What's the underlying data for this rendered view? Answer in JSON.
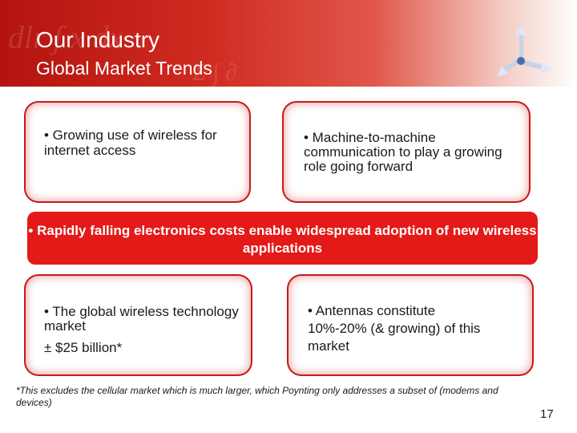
{
  "header": {
    "title": "Our Industry",
    "subtitle": "Global Market Trends",
    "logo_icon": "tri-arrow-logo-icon"
  },
  "boxes": {
    "top_left": "• Growing use of wireless for internet access",
    "top_right": "• Machine-to-machine communication to play a growing role going forward",
    "bottom_left_line1": "• The global wireless technology market",
    "bottom_left_line2": "± $25 billion*",
    "bottom_right": "• Antennas constitute 10%-20% (& growing) of this market"
  },
  "banner": {
    "text": "• Rapidly falling electronics costs enable widespread adoption of new wireless applications"
  },
  "footnote": "*This excludes the cellular market which is much larger, which Poynting only addresses a subset of (modems and devices)",
  "page_number": "17",
  "colors": {
    "brand_red": "#e31a18",
    "header_red": "#b3140f",
    "logo_blue": "#4a6fa5"
  }
}
